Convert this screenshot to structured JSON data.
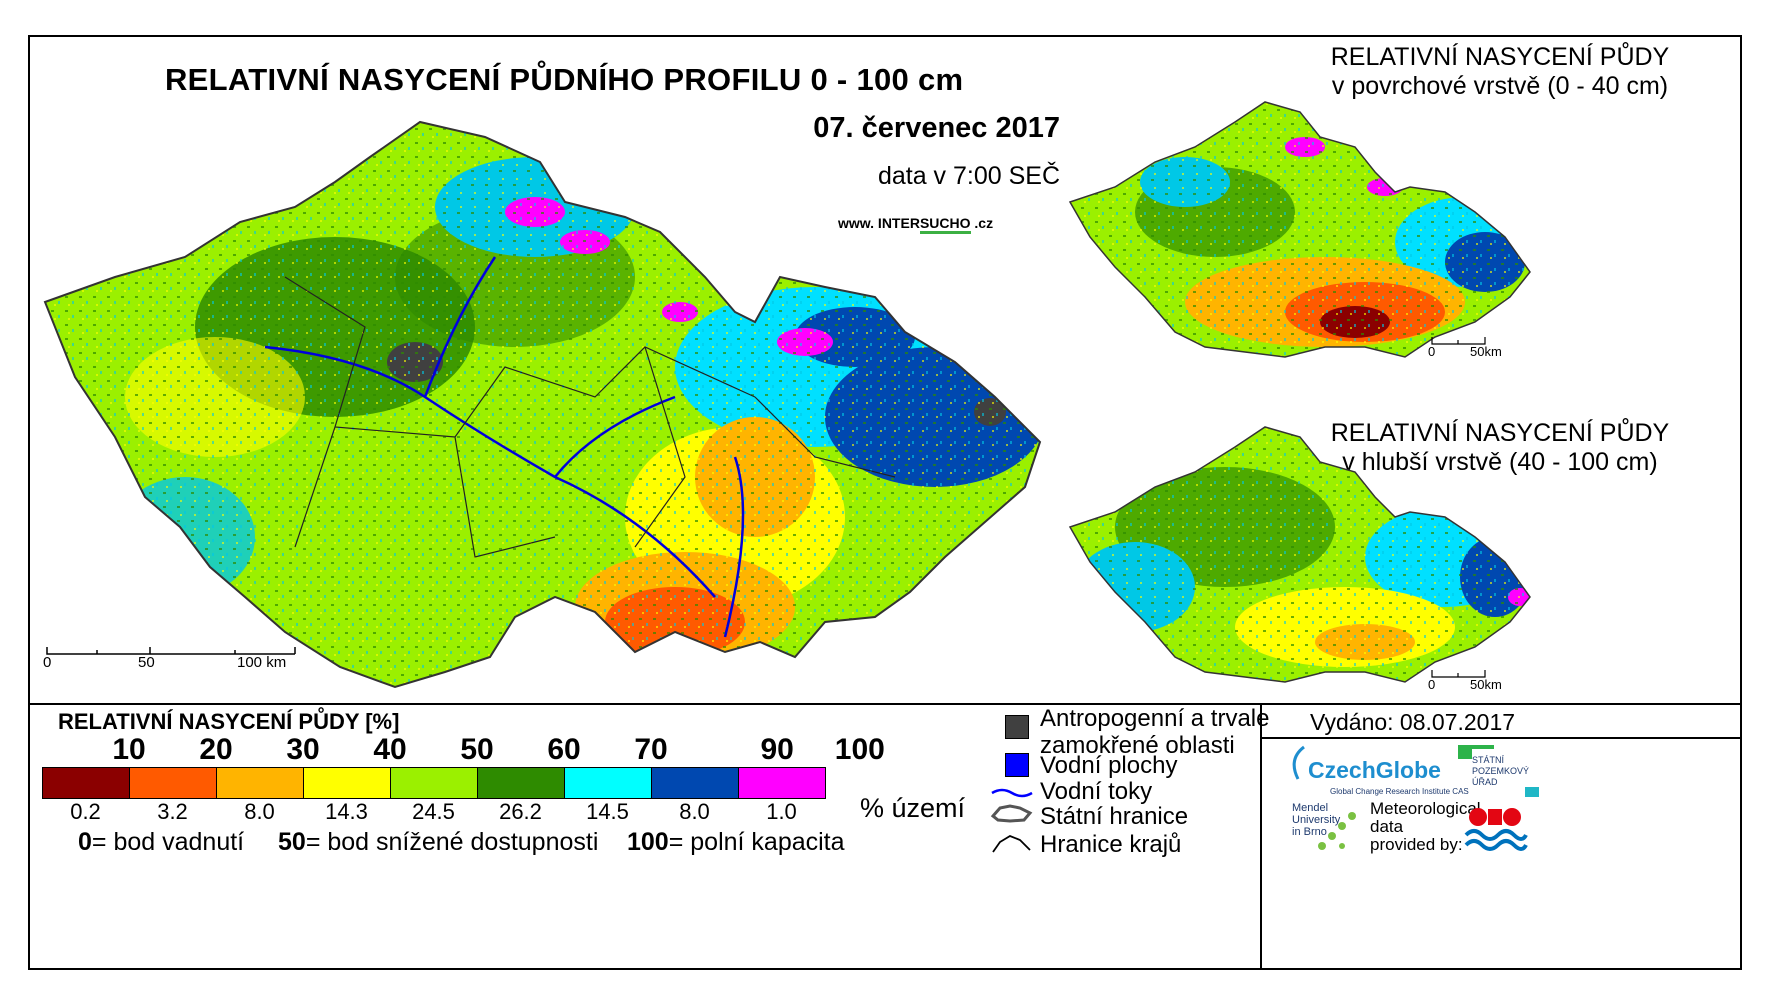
{
  "header": {
    "title": "RELATIVNÍ NASYCENÍ PŮDNÍHO PROFILU 0 - 100 cm",
    "date": "07. červenec 2017",
    "time": "data v 7:00 SEČ",
    "website_prefix": "www. INTER",
    "website_mid": "SUCHO",
    "website_suffix": " .cz"
  },
  "insets": {
    "top_title_line1": "RELATIVNÍ NASYCENÍ PŮDY",
    "top_title_line2": "v povrchové vrstvě (0 - 40 cm)",
    "bottom_title_line1": "RELATIVNÍ NASYCENÍ PŮDY",
    "bottom_title_line2": "v hlubší vrstvě (40 - 100 cm)",
    "scale_0": "0",
    "scale_50": "50km"
  },
  "scalebar": {
    "t0": "0",
    "t50": "50",
    "t100": "100 km"
  },
  "legend": {
    "title": "RELATIVNÍ NASYCENÍ PŮDY [%]",
    "ticks": [
      "10",
      "20",
      "30",
      "40",
      "50",
      "60",
      "70",
      "90",
      "100"
    ],
    "colors": [
      "#8b0000",
      "#ff5a00",
      "#ffb400",
      "#ffff00",
      "#9bf000",
      "#2e8b00",
      "#00ffff",
      "#0048b0",
      "#ff00ff"
    ],
    "percentages": [
      "0.2",
      "3.2",
      "8.0",
      "14.3",
      "24.5",
      "26.2",
      "14.5",
      "8.0",
      "1.0"
    ],
    "pct_unit": "% území",
    "def1_bold": "0",
    "def1_text": "= bod vadnutí",
    "def2_bold": "50",
    "def2_text": "= bod snížené dostupnosti",
    "def3_bold": "100",
    "def3_text": "= polní kapacita"
  },
  "symbols": {
    "anthropogenic_line1": "Antropogenní a trvale",
    "anthropogenic_line2": "zamokřené oblasti",
    "water_bodies": "Vodní plochy",
    "rivers": "Vodní toky",
    "state_border": "Státní hranice",
    "regional_border": "Hranice krajů",
    "color_anthropogenic": "#404040",
    "color_water": "#0000ff"
  },
  "footer": {
    "issued": "Vydáno: 08.07.2017",
    "czechglobe": "CzechGlobe",
    "czechglobe_sub": "Global Change Research Institute CAS",
    "spu_line1": "STÁTNÍ",
    "spu_line2": "POZEMKOVÝ",
    "spu_line3": "ÚŘAD",
    "mendel_line1": "Mendel",
    "mendel_line2": "University",
    "mendel_line3": "in Brno",
    "meteo_line1": "Meteorological",
    "meteo_line2": "data",
    "meteo_line3": "provided by:"
  }
}
